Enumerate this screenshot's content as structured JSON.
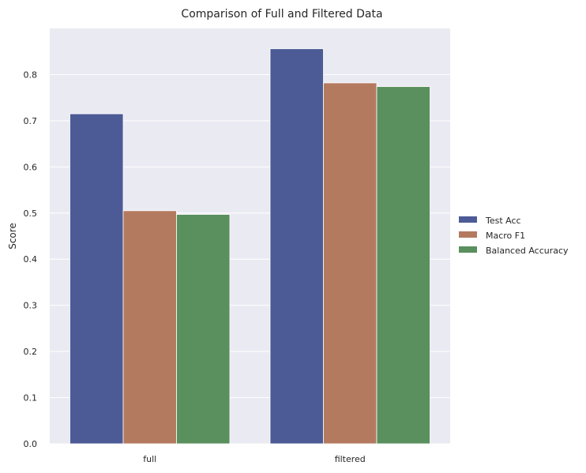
{
  "chart_data": {
    "type": "bar",
    "title": "Comparison of Full and Filtered Data",
    "xlabel": "",
    "ylabel": "Score",
    "categories": [
      "full",
      "filtered"
    ],
    "series": [
      {
        "name": "Test Acc",
        "values": [
          0.715,
          0.856
        ],
        "color": "#4c5b96"
      },
      {
        "name": "Macro F1",
        "values": [
          0.505,
          0.782
        ],
        "color": "#b47a60"
      },
      {
        "name": "Balanced Accuracy",
        "values": [
          0.497,
          0.774
        ],
        "color": "#5a8f5e"
      }
    ],
    "ylim": [
      0,
      0.9
    ],
    "yticks": [
      "0.0",
      "0.1",
      "0.2",
      "0.3",
      "0.4",
      "0.5",
      "0.6",
      "0.7",
      "0.8"
    ],
    "grid": true,
    "legend_position": "right",
    "plot_background": "#eaeaf2"
  }
}
